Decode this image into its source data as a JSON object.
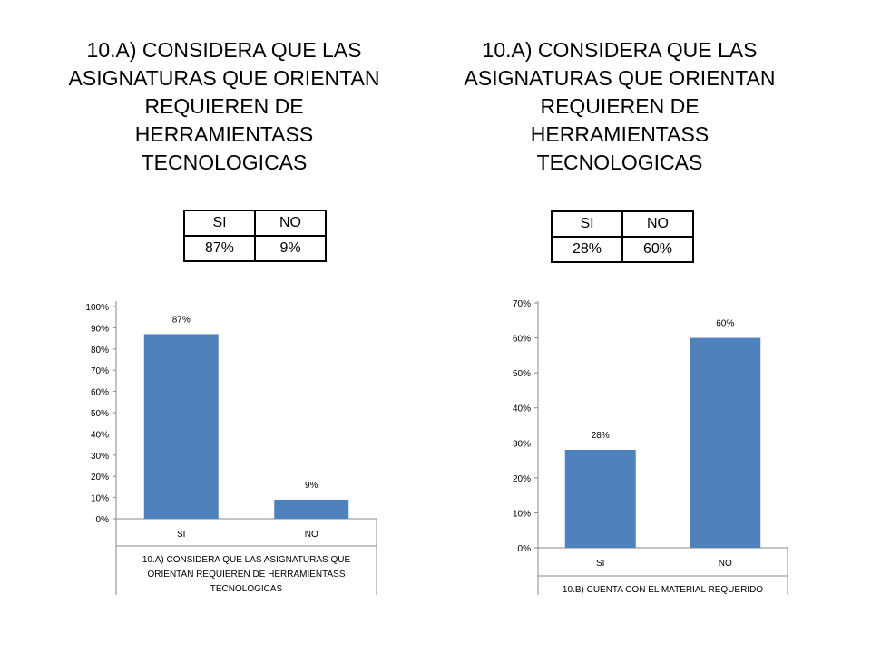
{
  "titles": {
    "left": "10.A) CONSIDERA QUE LAS ASIGNATURAS QUE ORIENTAN REQUIEREN DE HERRAMIENTASS TECNOLOGICAS",
    "right": "10.A) CONSIDERA QUE LAS ASIGNATURAS QUE ORIENTAN REQUIEREN DE HERRAMIENTASS TECNOLOGICAS"
  },
  "tables": {
    "left": {
      "headers": [
        "SI",
        "NO"
      ],
      "values": [
        "87%",
        "9%"
      ]
    },
    "right": {
      "headers": [
        "SI",
        "NO"
      ],
      "values": [
        "28%",
        "60%"
      ]
    }
  },
  "chart_data": [
    {
      "type": "bar",
      "categories": [
        "SI",
        "NO"
      ],
      "values": [
        87,
        9
      ],
      "data_labels": [
        "87%",
        "9%"
      ],
      "xlabel_lines": [
        "10.A) CONSIDERA QUE LAS ASIGNATURAS QUE",
        "ORIENTAN REQUIEREN DE HERRAMIENTASS",
        "TECNOLOGICAS"
      ],
      "ylim": [
        0,
        100
      ],
      "yticks": [
        "0%",
        "10%",
        "20%",
        "30%",
        "40%",
        "50%",
        "60%",
        "70%",
        "80%",
        "90%",
        "100%"
      ],
      "grid": false,
      "bar_color": "#4F81BD"
    },
    {
      "type": "bar",
      "categories": [
        "SI",
        "NO"
      ],
      "values": [
        28,
        60
      ],
      "data_labels": [
        "28%",
        "60%"
      ],
      "xlabel_lines": [
        "10.B) CUENTA CON EL MATERIAL REQUERIDO"
      ],
      "ylim": [
        0,
        70
      ],
      "yticks": [
        "0%",
        "10%",
        "20%",
        "30%",
        "40%",
        "50%",
        "60%",
        "70%"
      ],
      "grid": false,
      "bar_color": "#4F81BD"
    }
  ]
}
